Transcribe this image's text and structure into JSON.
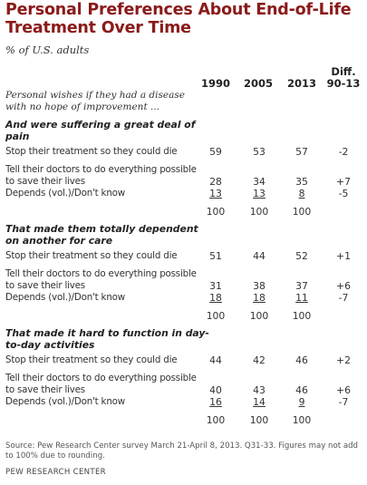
{
  "title": "Personal Preferences About End-of-Life Treatment Over Time",
  "subtitle": "% of U.S. adults",
  "columns": [
    "1990",
    "2005",
    "2013",
    "Diff. 90-13"
  ],
  "intro": "Personal wishes if they had a disease with no hope of improvement ...",
  "chart_data": {
    "type": "table",
    "columns": [
      "1990",
      "2005",
      "2013",
      "Diff. 90-13"
    ],
    "sections": [
      {
        "heading": "And were suffering a great deal of pain",
        "rows": [
          {
            "label": "Stop their treatment so they could die",
            "values": [
              "59",
              "53",
              "57",
              "-2"
            ]
          },
          {
            "label": "Tell their doctors to do everything possible to save their lives",
            "values": [
              "28",
              "34",
              "35",
              "+7"
            ]
          },
          {
            "label": "Depends (vol.)/Don't know",
            "values": [
              "13",
              "13",
              "8",
              "-5"
            ]
          },
          {
            "label": "",
            "values": [
              "100",
              "100",
              "100",
              ""
            ]
          }
        ]
      },
      {
        "heading": "That made them totally dependent on another for care",
        "rows": [
          {
            "label": "Stop their treatment so they could die",
            "values": [
              "51",
              "44",
              "52",
              "+1"
            ]
          },
          {
            "label": "Tell their doctors to do everything possible to save their lives",
            "values": [
              "31",
              "38",
              "37",
              "+6"
            ]
          },
          {
            "label": "Depends (vol.)/Don't know",
            "values": [
              "18",
              "18",
              "11",
              "-7"
            ]
          },
          {
            "label": "",
            "values": [
              "100",
              "100",
              "100",
              ""
            ]
          }
        ]
      },
      {
        "heading": "That made it hard to function in day-to-day activities",
        "rows": [
          {
            "label": "Stop their treatment so they could die",
            "values": [
              "44",
              "42",
              "46",
              "+2"
            ]
          },
          {
            "label": "Tell their doctors to do everything possible to save their lives",
            "values": [
              "40",
              "43",
              "46",
              "+6"
            ]
          },
          {
            "label": "Depends (vol.)/Don't know",
            "values": [
              "16",
              "14",
              "9",
              "-7"
            ]
          },
          {
            "label": "",
            "values": [
              "100",
              "100",
              "100",
              ""
            ]
          }
        ]
      }
    ]
  },
  "source": "Source: Pew Research Center survey March 21-April 8, 2013. Q31-33. Figures may not add to 100% due to rounding.",
  "brand": "PEW RESEARCH CENTER",
  "colors": {
    "title": "#8b1a1a",
    "text": "#333333"
  }
}
